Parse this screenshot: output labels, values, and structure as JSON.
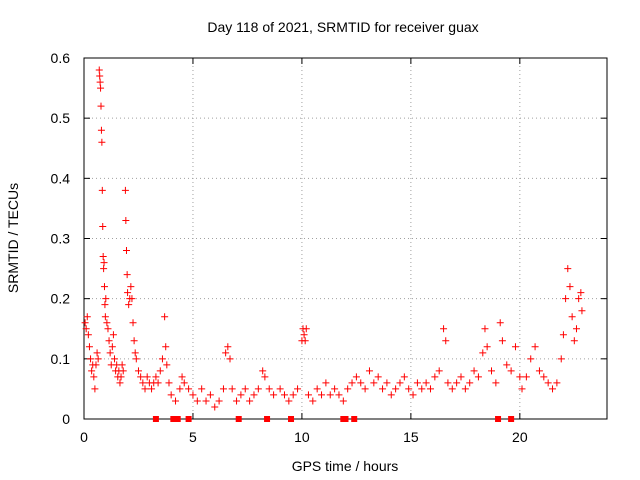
{
  "chart_data": {
    "type": "scatter",
    "title": "Day 118 of 2021, SRMTID for receiver guax",
    "xlabel": "GPS time / hours",
    "ylabel": "SRMTID / TECUs",
    "xlim": [
      0,
      24
    ],
    "ylim": [
      0,
      0.6
    ],
    "xticks": [
      0,
      5,
      10,
      15,
      20
    ],
    "xtick_labels": [
      "0",
      "5",
      "10",
      "15",
      "20"
    ],
    "yticks": [
      0,
      0.1,
      0.2,
      0.3,
      0.4,
      0.5,
      0.6
    ],
    "ytick_labels": [
      "0",
      "0.1",
      "0.2",
      "0.3",
      "0.4",
      "0.5",
      "0.6"
    ],
    "grid": true,
    "marker": "+",
    "color": "#ff0000",
    "series": [
      {
        "name": "SRMTID",
        "points": [
          [
            0.05,
            0.16
          ],
          [
            0.1,
            0.15
          ],
          [
            0.15,
            0.17
          ],
          [
            0.2,
            0.14
          ],
          [
            0.25,
            0.12
          ],
          [
            0.3,
            0.1
          ],
          [
            0.35,
            0.08
          ],
          [
            0.4,
            0.09
          ],
          [
            0.45,
            0.07
          ],
          [
            0.5,
            0.05
          ],
          [
            0.55,
            0.09
          ],
          [
            0.6,
            0.11
          ],
          [
            0.65,
            0.1
          ],
          [
            0.7,
            0.58
          ],
          [
            0.72,
            0.57
          ],
          [
            0.74,
            0.56
          ],
          [
            0.76,
            0.55
          ],
          [
            0.78,
            0.52
          ],
          [
            0.8,
            0.48
          ],
          [
            0.82,
            0.46
          ],
          [
            0.84,
            0.38
          ],
          [
            0.86,
            0.32
          ],
          [
            0.88,
            0.27
          ],
          [
            0.9,
            0.25
          ],
          [
            0.92,
            0.26
          ],
          [
            0.94,
            0.22
          ],
          [
            0.96,
            0.19
          ],
          [
            0.98,
            0.17
          ],
          [
            1.0,
            0.2
          ],
          [
            1.05,
            0.16
          ],
          [
            1.1,
            0.15
          ],
          [
            1.15,
            0.13
          ],
          [
            1.2,
            0.11
          ],
          [
            1.25,
            0.09
          ],
          [
            1.3,
            0.12
          ],
          [
            1.35,
            0.14
          ],
          [
            1.4,
            0.1
          ],
          [
            1.45,
            0.08
          ],
          [
            1.5,
            0.09
          ],
          [
            1.55,
            0.07
          ],
          [
            1.6,
            0.08
          ],
          [
            1.65,
            0.06
          ],
          [
            1.7,
            0.07
          ],
          [
            1.75,
            0.09
          ],
          [
            1.8,
            0.08
          ],
          [
            1.9,
            0.38
          ],
          [
            1.92,
            0.33
          ],
          [
            1.95,
            0.28
          ],
          [
            1.98,
            0.24
          ],
          [
            2.0,
            0.21
          ],
          [
            2.05,
            0.19
          ],
          [
            2.1,
            0.2
          ],
          [
            2.15,
            0.22
          ],
          [
            2.2,
            0.2
          ],
          [
            2.25,
            0.16
          ],
          [
            2.3,
            0.13
          ],
          [
            2.35,
            0.11
          ],
          [
            2.4,
            0.1
          ],
          [
            2.5,
            0.08
          ],
          [
            2.6,
            0.07
          ],
          [
            2.7,
            0.06
          ],
          [
            2.8,
            0.05
          ],
          [
            2.9,
            0.07
          ],
          [
            3.0,
            0.06
          ],
          [
            3.1,
            0.05
          ],
          [
            3.2,
            0.06
          ],
          [
            3.3,
            0.07
          ],
          [
            3.4,
            0.06
          ],
          [
            3.5,
            0.08
          ],
          [
            3.6,
            0.1
          ],
          [
            3.7,
            0.17
          ],
          [
            3.75,
            0.12
          ],
          [
            3.8,
            0.09
          ],
          [
            3.9,
            0.06
          ],
          [
            4.0,
            0.04
          ],
          [
            4.2,
            0.03
          ],
          [
            4.4,
            0.05
          ],
          [
            4.5,
            0.07
          ],
          [
            4.6,
            0.06
          ],
          [
            4.8,
            0.05
          ],
          [
            5.0,
            0.04
          ],
          [
            5.2,
            0.03
          ],
          [
            5.4,
            0.05
          ],
          [
            5.6,
            0.03
          ],
          [
            5.8,
            0.04
          ],
          [
            6.0,
            0.02
          ],
          [
            6.2,
            0.03
          ],
          [
            6.4,
            0.05
          ],
          [
            6.5,
            0.11
          ],
          [
            6.6,
            0.12
          ],
          [
            6.7,
            0.1
          ],
          [
            6.8,
            0.05
          ],
          [
            7.0,
            0.03
          ],
          [
            7.2,
            0.04
          ],
          [
            7.4,
            0.05
          ],
          [
            7.6,
            0.03
          ],
          [
            7.8,
            0.04
          ],
          [
            8.0,
            0.05
          ],
          [
            8.2,
            0.08
          ],
          [
            8.3,
            0.07
          ],
          [
            8.5,
            0.05
          ],
          [
            8.7,
            0.04
          ],
          [
            9.0,
            0.05
          ],
          [
            9.2,
            0.04
          ],
          [
            9.4,
            0.03
          ],
          [
            9.6,
            0.04
          ],
          [
            9.8,
            0.05
          ],
          [
            10.0,
            0.13
          ],
          [
            10.05,
            0.15
          ],
          [
            10.1,
            0.14
          ],
          [
            10.15,
            0.13
          ],
          [
            10.2,
            0.15
          ],
          [
            10.3,
            0.04
          ],
          [
            10.5,
            0.03
          ],
          [
            10.7,
            0.05
          ],
          [
            10.9,
            0.04
          ],
          [
            11.1,
            0.06
          ],
          [
            11.3,
            0.04
          ],
          [
            11.5,
            0.05
          ],
          [
            11.7,
            0.04
          ],
          [
            11.9,
            0.03
          ],
          [
            12.1,
            0.05
          ],
          [
            12.3,
            0.06
          ],
          [
            12.5,
            0.07
          ],
          [
            12.7,
            0.06
          ],
          [
            12.9,
            0.05
          ],
          [
            13.1,
            0.08
          ],
          [
            13.3,
            0.06
          ],
          [
            13.5,
            0.07
          ],
          [
            13.7,
            0.05
          ],
          [
            13.9,
            0.06
          ],
          [
            14.1,
            0.04
          ],
          [
            14.3,
            0.05
          ],
          [
            14.5,
            0.06
          ],
          [
            14.7,
            0.07
          ],
          [
            14.9,
            0.05
          ],
          [
            15.1,
            0.04
          ],
          [
            15.3,
            0.06
          ],
          [
            15.5,
            0.05
          ],
          [
            15.7,
            0.06
          ],
          [
            15.9,
            0.05
          ],
          [
            16.1,
            0.07
          ],
          [
            16.3,
            0.08
          ],
          [
            16.5,
            0.15
          ],
          [
            16.6,
            0.13
          ],
          [
            16.7,
            0.06
          ],
          [
            16.9,
            0.05
          ],
          [
            17.1,
            0.06
          ],
          [
            17.3,
            0.07
          ],
          [
            17.5,
            0.05
          ],
          [
            17.7,
            0.06
          ],
          [
            17.9,
            0.08
          ],
          [
            18.1,
            0.07
          ],
          [
            18.3,
            0.11
          ],
          [
            18.4,
            0.15
          ],
          [
            18.5,
            0.12
          ],
          [
            18.7,
            0.08
          ],
          [
            18.9,
            0.06
          ],
          [
            19.1,
            0.16
          ],
          [
            19.2,
            0.13
          ],
          [
            19.4,
            0.09
          ],
          [
            19.6,
            0.08
          ],
          [
            19.8,
            0.12
          ],
          [
            20.0,
            0.07
          ],
          [
            20.1,
            0.05
          ],
          [
            20.3,
            0.07
          ],
          [
            20.5,
            0.1
          ],
          [
            20.7,
            0.12
          ],
          [
            20.9,
            0.08
          ],
          [
            21.1,
            0.07
          ],
          [
            21.3,
            0.06
          ],
          [
            21.5,
            0.05
          ],
          [
            21.7,
            0.06
          ],
          [
            21.9,
            0.1
          ],
          [
            22.0,
            0.14
          ],
          [
            22.1,
            0.2
          ],
          [
            22.2,
            0.25
          ],
          [
            22.3,
            0.22
          ],
          [
            22.4,
            0.17
          ],
          [
            22.5,
            0.13
          ],
          [
            22.6,
            0.15
          ],
          [
            22.7,
            0.2
          ],
          [
            22.8,
            0.21
          ],
          [
            22.85,
            0.18
          ]
        ]
      }
    ],
    "flags": {
      "y": 0,
      "marker": "filled-square",
      "x": [
        3.3,
        4.1,
        4.3,
        4.8,
        7.1,
        8.4,
        9.5,
        11.9,
        12.0,
        12.4,
        19.0,
        19.6
      ]
    }
  }
}
